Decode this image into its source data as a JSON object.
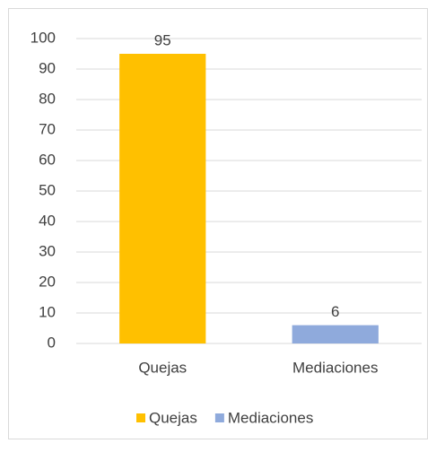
{
  "chart_data": {
    "type": "bar",
    "categories": [
      "Quejas",
      "Mediaciones"
    ],
    "values": [
      95,
      6
    ],
    "colors": [
      "#ffc000",
      "#8faadc"
    ],
    "ylim": [
      0,
      100
    ],
    "yticks": [
      0,
      10,
      20,
      30,
      40,
      50,
      60,
      70,
      80,
      90,
      100
    ],
    "grid": true,
    "legend": "bottom"
  }
}
